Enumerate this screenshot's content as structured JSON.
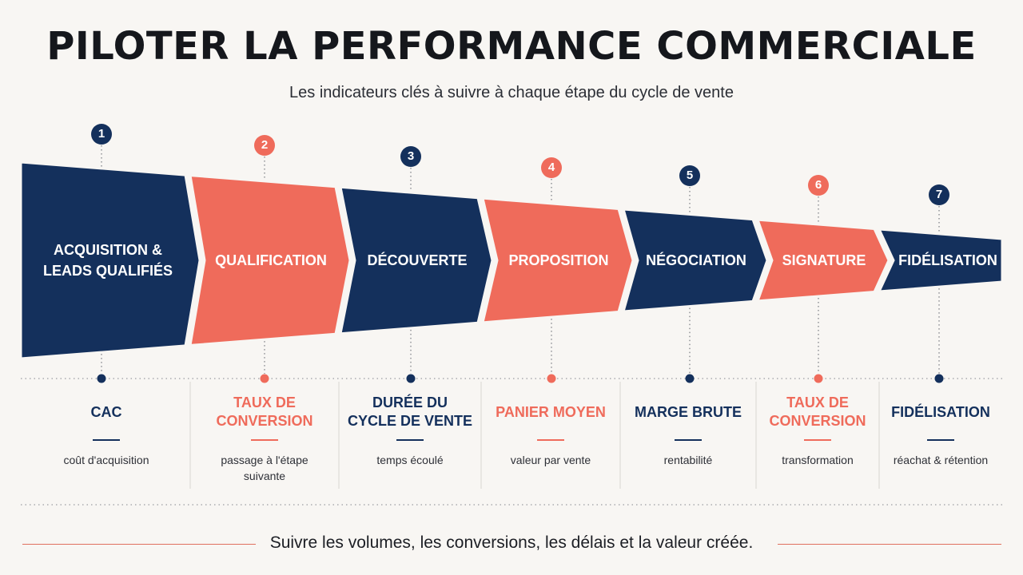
{
  "title": "PILOTER LA PERFORMANCE COMMERCIALE",
  "subtitle": "Les indicateurs clés à suivre à chaque étape du cycle de vente",
  "colors": {
    "navy": "#14305c",
    "coral": "#ef6b5b",
    "text": "#15171c"
  },
  "stages": [
    {
      "number": "1",
      "label": "ACQUISITION &\nLEADS QUALIFIÉS",
      "color": "navy"
    },
    {
      "number": "2",
      "label": "QUALIFICATION",
      "color": "coral"
    },
    {
      "number": "3",
      "label": "DÉCOUVERTE",
      "color": "navy"
    },
    {
      "number": "4",
      "label": "PROPOSITION",
      "color": "coral"
    },
    {
      "number": "5",
      "label": "NÉGOCIATION",
      "color": "navy"
    },
    {
      "number": "6",
      "label": "SIGNATURE",
      "color": "coral"
    },
    {
      "number": "7",
      "label": "FIDÉLISATION",
      "color": "navy"
    }
  ],
  "kpis": [
    {
      "title": "CAC",
      "description": "coût d'acquisition",
      "color": "navy"
    },
    {
      "title": "TAUX DE\nCONVERSION",
      "description": "passage à l'étape\nsuivante",
      "color": "coral"
    },
    {
      "title": "DURÉE DU\nCYCLE DE VENTE",
      "description": "temps écoulé",
      "color": "navy"
    },
    {
      "title": "PANIER MOYEN",
      "description": "valeur par vente",
      "color": "coral"
    },
    {
      "title": "MARGE BRUTE",
      "description": "rentabilité",
      "color": "navy"
    },
    {
      "title": "TAUX DE\nCONVERSION",
      "description": "transformation",
      "color": "coral"
    },
    {
      "title": "FIDÉLISATION",
      "description": "réachat & rétention",
      "color": "navy"
    }
  ],
  "footer": "Suivre les volumes, les conversions, les délais et la valeur créée."
}
